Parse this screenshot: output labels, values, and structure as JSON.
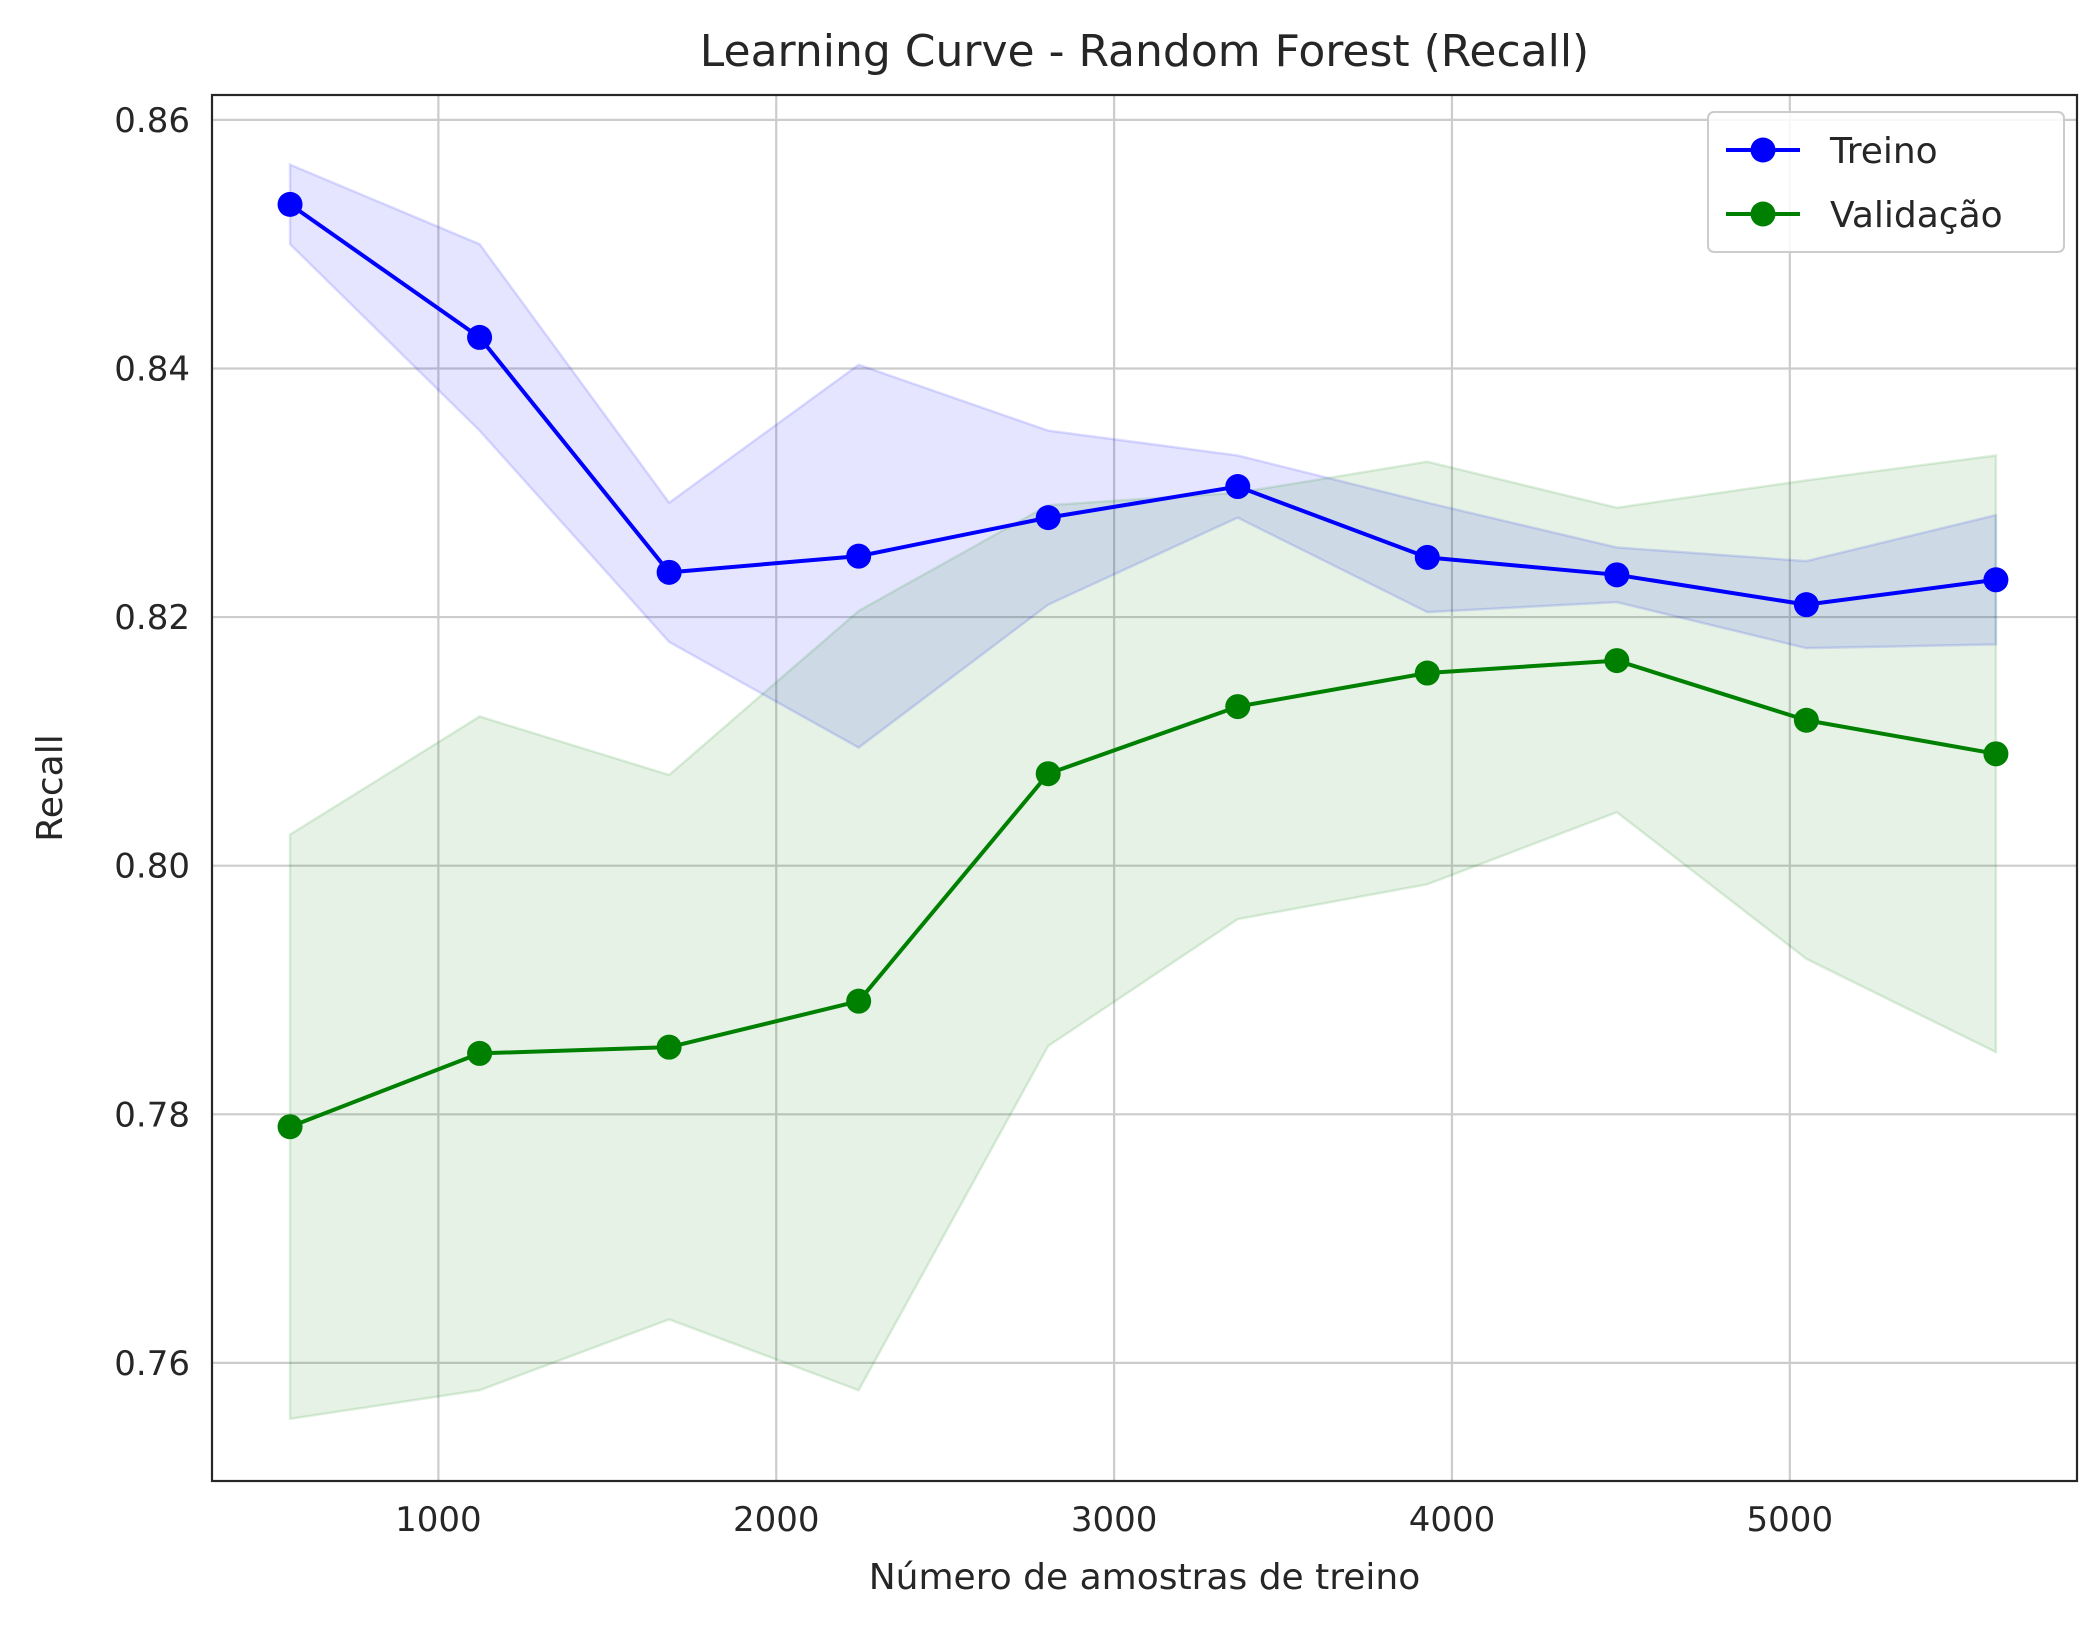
{
  "chart_data": {
    "type": "line",
    "title": "Learning Curve - Random Forest (Recall)",
    "xlabel": "Número de amostras de treino",
    "ylabel": "Recall",
    "xlim": [
      330,
      5850
    ],
    "ylim": [
      0.7505,
      0.862
    ],
    "xticks": [
      1000,
      2000,
      3000,
      4000,
      5000
    ],
    "xtick_labels": [
      "1000",
      "2000",
      "3000",
      "4000",
      "5000"
    ],
    "yticks": [
      0.76,
      0.78,
      0.8,
      0.82,
      0.84,
      0.86
    ],
    "ytick_labels": [
      "0.76",
      "0.78",
      "0.80",
      "0.82",
      "0.84",
      "0.86"
    ],
    "grid": true,
    "legend_position": "top-right",
    "x": [
      561,
      1122,
      1683,
      2244,
      2805,
      3366,
      3927,
      4488,
      5049,
      5610
    ],
    "series": [
      {
        "name": "Treino",
        "color": "#0000ff",
        "values": [
          0.8532,
          0.8425,
          0.8236,
          0.8249,
          0.828,
          0.8305,
          0.8248,
          0.8234,
          0.821,
          0.823
        ],
        "band_upper": [
          0.8564,
          0.85,
          0.8292,
          0.8403,
          0.835,
          0.833,
          0.8292,
          0.8256,
          0.8245,
          0.8282
        ],
        "band_lower": [
          0.85,
          0.835,
          0.818,
          0.8095,
          0.821,
          0.828,
          0.8204,
          0.8212,
          0.8175,
          0.8178
        ]
      },
      {
        "name": "Validação",
        "color": "#008000",
        "values": [
          0.779,
          0.7849,
          0.7854,
          0.7891,
          0.8074,
          0.8128,
          0.8155,
          0.8165,
          0.8117,
          0.809
        ],
        "band_upper": [
          0.8025,
          0.812,
          0.8073,
          0.8205,
          0.829,
          0.83,
          0.8325,
          0.8288,
          0.831,
          0.833
        ],
        "band_lower": [
          0.7555,
          0.7578,
          0.7635,
          0.7578,
          0.7855,
          0.7957,
          0.7985,
          0.8043,
          0.7925,
          0.785
        ]
      }
    ]
  }
}
